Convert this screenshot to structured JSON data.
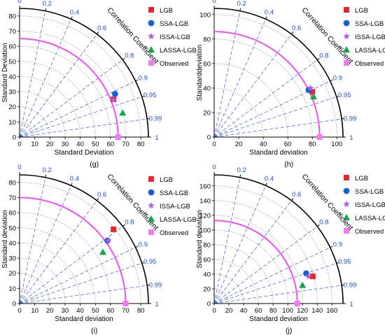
{
  "colors": {
    "LGB": "#e8262b",
    "SSA-LGB": "#1460d6",
    "ISSA-LGB": "#b05de8",
    "LASSA-LGB": "#12a64a",
    "Observed": "#f77af5",
    "ref_arc": "#f24ff0",
    "corr_label": "#1f4fd6",
    "grid_dash": "#4a6ee0",
    "axis": "#000000"
  },
  "corr_axis_title": "Correlation Coefficient",
  "correlation_ticks": [
    "0",
    "0.2",
    "0.4",
    "0.6",
    "0.8",
    "0.9",
    "0.95",
    "0.99",
    "1"
  ],
  "correlation_values": [
    0,
    0.2,
    0.4,
    0.6,
    0.8,
    0.9,
    0.95,
    0.99,
    1
  ],
  "chart_data": [
    {
      "type": "taylor",
      "panel_label": "(g)",
      "xlabel": "Standard Deviation",
      "ylabel": "Standard Deviation",
      "std_max": 85,
      "ticks": [
        "0",
        "10",
        "20",
        "30",
        "40",
        "50",
        "60",
        "70",
        "80"
      ],
      "tick_values": [
        0,
        10,
        20,
        30,
        40,
        50,
        60,
        70,
        80
      ],
      "observed_std": 65,
      "legend": {
        "position": "top-right",
        "font": "serif"
      },
      "series": [
        {
          "name": "LGB",
          "marker": "square",
          "x": 62,
          "y": 25
        },
        {
          "name": "SSA-LGB",
          "marker": "circle",
          "x": 63,
          "y": 28.5
        },
        {
          "name": "ISSA-LGB",
          "marker": "star",
          "x": 62,
          "y": 24.5
        },
        {
          "name": "LASSA-LGB",
          "marker": "triangle",
          "x": 68,
          "y": 16
        },
        {
          "name": "Observed",
          "marker": "square",
          "x": 65,
          "y": 0
        }
      ]
    },
    {
      "type": "taylor",
      "panel_label": "(h)",
      "xlabel": "Standard deviation",
      "ylabel": "Standarddeviation",
      "std_max": 105,
      "ticks": [
        "0",
        "20",
        "40",
        "60",
        "80",
        "100"
      ],
      "tick_values": [
        0,
        20,
        40,
        60,
        80,
        100
      ],
      "observed_std": 86,
      "legend": {
        "position": "top-right",
        "font": "serif"
      },
      "series": [
        {
          "name": "LGB",
          "marker": "square",
          "x": 80,
          "y": 37
        },
        {
          "name": "SSA-LGB",
          "marker": "circle",
          "x": 77,
          "y": 38.5
        },
        {
          "name": "ISSA-LGB",
          "marker": "star",
          "x": 78.5,
          "y": 40
        },
        {
          "name": "LASSA-LGB",
          "marker": "triangle",
          "x": 81,
          "y": 33
        },
        {
          "name": "Observed",
          "marker": "square",
          "x": 86,
          "y": 0
        }
      ]
    },
    {
      "type": "taylor",
      "panel_label": "(i)",
      "xlabel": "Standard deviation",
      "ylabel": "Standard deviation",
      "std_max": 85,
      "ticks": [
        "0",
        "10",
        "20",
        "30",
        "40",
        "50",
        "60",
        "70",
        "80"
      ],
      "tick_values": [
        0,
        10,
        20,
        30,
        40,
        50,
        60,
        70,
        80
      ],
      "observed_std": 70,
      "legend": {
        "position": "top-right",
        "font": "serif"
      },
      "series": [
        {
          "name": "LGB",
          "marker": "square",
          "x": 62,
          "y": 49
        },
        {
          "name": "SSA-LGB",
          "marker": "circle",
          "x": 58,
          "y": 41.5
        },
        {
          "name": "ISSA-LGB",
          "marker": "star",
          "x": 58.5,
          "y": 41.5
        },
        {
          "name": "LASSA-LGB",
          "marker": "triangle",
          "x": 55,
          "y": 34
        },
        {
          "name": "Observed",
          "marker": "square",
          "x": 70,
          "y": 0
        }
      ]
    },
    {
      "type": "taylor",
      "panel_label": "(j)",
      "xlabel": "Standard deviation",
      "ylabel": "Standard deviation",
      "std_max": 175,
      "ticks": [
        "0",
        "20",
        "40",
        "60",
        "80",
        "100",
        "120",
        "140",
        "160"
      ],
      "tick_values": [
        0,
        20,
        40,
        60,
        80,
        100,
        120,
        140,
        160
      ],
      "y_ticks": [
        "0",
        "20",
        "40",
        "60",
        "80",
        "100",
        "120",
        "140",
        "160"
      ],
      "observed_std": 113,
      "legend": {
        "position": "top-right",
        "font": "serif"
      },
      "series": [
        {
          "name": "LGB",
          "marker": "square",
          "x": 134,
          "y": 37
        },
        {
          "name": "SSA-LGB",
          "marker": "circle",
          "x": 125,
          "y": 41
        },
        {
          "name": "ISSA-LGB",
          "marker": "star",
          "x": 128,
          "y": 37
        },
        {
          "name": "LASSA-LGB",
          "marker": "triangle",
          "x": 120,
          "y": 25
        },
        {
          "name": "Observed",
          "marker": "square",
          "x": 113,
          "y": 0
        }
      ]
    }
  ]
}
